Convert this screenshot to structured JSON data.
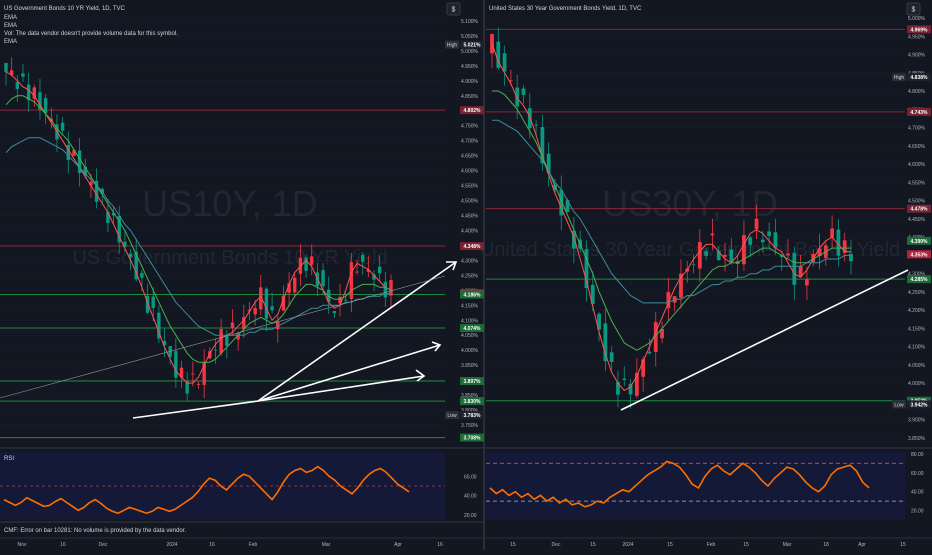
{
  "left": {
    "header": {
      "title": "US Government Bonds 10 YR Yield, 1D, TVC",
      "lines": [
        "EMA",
        "EMA",
        "Vol: The data vendor doesn't provide volume data for this symbol.",
        "EMA"
      ]
    },
    "watermark": {
      "symbol": "US10Y, 1D",
      "name": "US Government Bonds 10 YR Yield"
    },
    "price_axis": {
      "ticks": [
        "5.100%",
        "5.050%",
        "5.000%",
        "4.950%",
        "4.900%",
        "4.850%",
        "4.800%",
        "4.750%",
        "4.700%",
        "4.650%",
        "4.600%",
        "4.550%",
        "4.500%",
        "4.450%",
        "4.400%",
        "4.350%",
        "4.300%",
        "4.250%",
        "4.200%",
        "4.150%",
        "4.100%",
        "4.050%",
        "4.000%",
        "3.950%",
        "3.900%",
        "3.850%",
        "3.800%",
        "3.750%"
      ]
    },
    "labels": [
      {
        "text": "5.021%",
        "tag": "High",
        "color": "#131722"
      },
      {
        "text": "4.802%",
        "tag": "",
        "color": "#7a2230"
      },
      {
        "text": "4.348%",
        "tag": "",
        "color": "#7a2230"
      },
      {
        "text": "4.190%",
        "tag": "",
        "color": "#b2233a"
      },
      {
        "text": "4.186%",
        "tag": "",
        "color": "#1e6b3a"
      },
      {
        "text": "4.074%",
        "tag": "",
        "color": "#1e6b3a"
      },
      {
        "text": "3.897%",
        "tag": "",
        "color": "#1e6b3a"
      },
      {
        "text": "3.830%",
        "tag": "",
        "color": "#1e6b3a"
      },
      {
        "text": "3.783%",
        "tag": "Low",
        "color": "#131722"
      },
      {
        "text": "3.708%",
        "tag": "",
        "color": "#1e6b3a"
      }
    ],
    "rsi": {
      "label": "RSI",
      "ticks": [
        "60.00",
        "40.00",
        "20.00"
      ]
    },
    "footer": "CMF: Error on bar 10281: No volume is provided by the data vendor.",
    "time_axis": [
      "Nov",
      "16",
      "Dec",
      "2024",
      "16",
      "Feb",
      "Mar",
      "Apr",
      "16"
    ]
  },
  "right": {
    "header": {
      "title": "United States 30 Year Government Bonds Yield, 1D, TVC"
    },
    "watermark": {
      "symbol": "US30Y, 1D",
      "name": "United States 30 Year Government Bonds Yield"
    },
    "price_axis": {
      "ticks": [
        "5.000%",
        "4.950%",
        "4.900%",
        "4.850%",
        "4.800%",
        "4.750%",
        "4.700%",
        "4.650%",
        "4.600%",
        "4.550%",
        "4.500%",
        "4.450%",
        "4.400%",
        "4.350%",
        "4.300%",
        "4.250%",
        "4.200%",
        "4.150%",
        "4.100%",
        "4.050%",
        "4.000%",
        "3.950%",
        "3.900%",
        "3.850%"
      ]
    },
    "labels": [
      {
        "text": "4.969%",
        "tag": "",
        "color": "#7a2230"
      },
      {
        "text": "4.838%",
        "tag": "High",
        "color": "#131722"
      },
      {
        "text": "4.743%",
        "tag": "",
        "color": "#7a2230"
      },
      {
        "text": "4.478%",
        "tag": "",
        "color": "#7a2230"
      },
      {
        "text": "4.390%",
        "tag": "",
        "color": "#1e6b3a"
      },
      {
        "text": "4.353%",
        "tag": "",
        "color": "#b2233a"
      },
      {
        "text": "4.285%",
        "tag": "",
        "color": "#1e6b3a"
      },
      {
        "text": "3.952%",
        "tag": "",
        "color": "#1e6b3a"
      },
      {
        "text": "3.942%",
        "tag": "Low",
        "color": "#131722"
      }
    ],
    "rsi": {
      "ticks": [
        "80.00",
        "60.00",
        "40.00",
        "20.00"
      ]
    },
    "time_axis": [
      "15",
      "Dec",
      "15",
      "2024",
      "15",
      "Feb",
      "15",
      "Mar",
      "18",
      "Apr",
      "15"
    ]
  },
  "scale_button": "$",
  "colors": {
    "bg": "#131722",
    "up": "#089981",
    "down": "#f23645",
    "ema_fast": "#ff5252",
    "ema_mid": "#4caf50",
    "ema_slow": "#3b8d9b",
    "rsi": "#ff6d00",
    "hline_red": "#8c2637",
    "hline_green": "#1f8a3e",
    "trend": "#ffffff"
  },
  "chart_data": [
    {
      "type": "candlestick",
      "title": "US Government Bonds 10 YR Yield, 1D, TVC",
      "ylim": [
        3.74,
        5.11
      ],
      "series": [
        {
          "name": "EMA",
          "values": [
            4.93,
            4.92,
            4.9,
            4.88,
            4.87,
            4.85,
            4.82,
            4.79,
            4.76,
            4.73,
            4.7,
            4.67,
            4.64,
            4.61,
            4.58,
            4.55,
            4.52,
            4.49,
            4.46,
            4.42,
            4.38,
            4.34,
            4.3,
            4.26,
            4.21,
            4.16,
            4.11,
            4.06,
            4.01,
            3.97,
            3.93,
            3.91,
            3.89,
            3.89,
            3.91,
            3.95,
            3.99,
            4.02,
            4.04,
            4.05,
            4.06,
            4.08,
            4.1,
            4.13,
            4.16,
            4.18,
            4.14,
            4.1,
            4.12,
            4.17,
            4.22,
            4.26,
            4.28,
            4.3,
            4.28,
            4.24,
            4.2,
            4.16,
            4.14,
            4.15,
            4.2,
            4.26,
            4.29,
            4.28,
            4.27,
            4.25,
            4.23,
            4.21,
            4.2
          ]
        },
        {
          "name": "EMA",
          "values": [
            4.82,
            4.84,
            4.85,
            4.85,
            4.84,
            4.83,
            4.81,
            4.79,
            4.77,
            4.74,
            4.72,
            4.7,
            4.67,
            4.64,
            4.61,
            4.58,
            4.55,
            4.52,
            4.49,
            4.46,
            4.43,
            4.4,
            4.36,
            4.32,
            4.28,
            4.24,
            4.2,
            4.16,
            4.12,
            4.08,
            4.05,
            4.02,
            3.99,
            3.97,
            3.96,
            3.96,
            3.96,
            3.97,
            3.99,
            4.01,
            4.03,
            4.05,
            4.07,
            4.09,
            4.1,
            4.11,
            4.1,
            4.09,
            4.1,
            4.12,
            4.15,
            4.18,
            4.2,
            4.22,
            4.22,
            4.21,
            4.2,
            4.18,
            4.17,
            4.17,
            4.18,
            4.2,
            4.21,
            4.22,
            4.22,
            4.22,
            4.21,
            4.21,
            4.2
          ]
        },
        {
          "name": "EMA",
          "values": [
            4.66,
            4.68,
            4.69,
            4.7,
            4.71,
            4.71,
            4.71,
            4.7,
            4.69,
            4.68,
            4.67,
            4.65,
            4.63,
            4.61,
            4.59,
            4.57,
            4.55,
            4.53,
            4.5,
            4.48,
            4.45,
            4.42,
            4.4,
            4.37,
            4.34,
            4.31,
            4.28,
            4.25,
            4.22,
            4.19,
            4.16,
            4.14,
            4.12,
            4.1,
            4.08,
            4.07,
            4.06,
            4.05,
            4.05,
            4.05,
            4.05,
            4.05,
            4.05,
            4.06,
            4.06,
            4.07,
            4.07,
            4.07,
            4.08,
            4.09,
            4.1,
            4.11,
            4.12,
            4.13,
            4.14,
            4.14,
            4.15,
            4.15,
            4.15,
            4.15,
            4.16,
            4.16,
            4.17,
            4.17,
            4.18,
            4.18,
            4.18,
            4.19,
            4.19
          ]
        },
        {
          "name": "RSI",
          "values": [
            36,
            33,
            30,
            33,
            38,
            35,
            32,
            29,
            30,
            34,
            37,
            33,
            29,
            25,
            28,
            33,
            36,
            32,
            27,
            24,
            22,
            25,
            28,
            26,
            24,
            22,
            24,
            28,
            26,
            24,
            26,
            30,
            34,
            38,
            44,
            52,
            58,
            56,
            50,
            46,
            52,
            58,
            62,
            60,
            54,
            48,
            42,
            36,
            44,
            54,
            62,
            66,
            68,
            64,
            66,
            70,
            66,
            60,
            56,
            50,
            46,
            42,
            48,
            56,
            62,
            66,
            68,
            64,
            58,
            52,
            48,
            44
          ]
        }
      ]
    },
    {
      "type": "candlestick",
      "title": "United States 30 Year Government Bonds Yield, 1D, TVC",
      "ylim": [
        3.85,
        5.0
      ],
      "series": [
        {
          "name": "EMA",
          "values": [
            4.93,
            4.88,
            4.85,
            4.82,
            4.78,
            4.76,
            4.73,
            4.68,
            4.62,
            4.57,
            4.52,
            4.48,
            4.44,
            4.4,
            4.34,
            4.28,
            4.21,
            4.14,
            4.08,
            4.03,
            4.0,
            3.98,
            3.99,
            4.02,
            4.06,
            4.1,
            4.14,
            4.18,
            4.22,
            4.26,
            4.29,
            4.31,
            4.34,
            4.36,
            4.38,
            4.38,
            4.36,
            4.34,
            4.33,
            4.35,
            4.38,
            4.41,
            4.42,
            4.41,
            4.39,
            4.37,
            4.36,
            4.33,
            4.3,
            4.29,
            4.31,
            4.34,
            4.37,
            4.39,
            4.4,
            4.38,
            4.36,
            4.36
          ]
        },
        {
          "name": "EMA",
          "values": [
            4.8,
            4.8,
            4.79,
            4.77,
            4.75,
            4.72,
            4.69,
            4.66,
            4.62,
            4.58,
            4.54,
            4.5,
            4.46,
            4.42,
            4.38,
            4.34,
            4.3,
            4.25,
            4.21,
            4.17,
            4.14,
            4.11,
            4.1,
            4.09,
            4.1,
            4.11,
            4.13,
            4.15,
            4.17,
            4.19,
            4.21,
            4.23,
            4.25,
            4.27,
            4.29,
            4.31,
            4.32,
            4.32,
            4.33,
            4.33,
            4.34,
            4.35,
            4.36,
            4.37,
            4.37,
            4.36,
            4.35,
            4.34,
            4.33,
            4.33,
            4.33,
            4.34,
            4.35,
            4.36,
            4.37,
            4.37,
            4.37,
            4.37
          ]
        },
        {
          "name": "EMA",
          "values": [
            4.72,
            4.72,
            4.71,
            4.7,
            4.69,
            4.67,
            4.65,
            4.63,
            4.61,
            4.58,
            4.55,
            4.53,
            4.5,
            4.47,
            4.45,
            4.42,
            4.39,
            4.36,
            4.33,
            4.3,
            4.28,
            4.26,
            4.24,
            4.23,
            4.22,
            4.22,
            4.22,
            4.22,
            4.22,
            4.23,
            4.23,
            4.24,
            4.24,
            4.25,
            4.26,
            4.27,
            4.27,
            4.28,
            4.28,
            4.29,
            4.29,
            4.3,
            4.3,
            4.31,
            4.31,
            4.32,
            4.32,
            4.32,
            4.32,
            4.32,
            4.33,
            4.33,
            4.33,
            4.34,
            4.34,
            4.34,
            4.35,
            4.35
          ]
        },
        {
          "name": "RSI",
          "values": [
            44,
            38,
            42,
            36,
            40,
            34,
            38,
            32,
            36,
            30,
            34,
            28,
            32,
            26,
            28,
            24,
            26,
            30,
            28,
            34,
            38,
            42,
            40,
            46,
            52,
            58,
            62,
            66,
            72,
            70,
            66,
            58,
            48,
            44,
            56,
            64,
            68,
            62,
            58,
            64,
            70,
            66,
            60,
            52,
            46,
            54,
            60,
            66,
            64,
            58,
            50,
            44,
            40,
            46,
            58,
            64,
            66,
            68,
            62,
            50,
            44
          ]
        }
      ]
    }
  ]
}
